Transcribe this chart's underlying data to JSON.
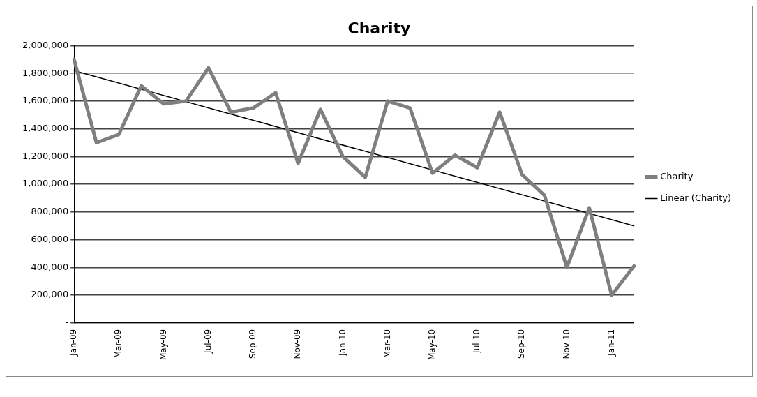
{
  "chart_data": {
    "type": "line",
    "title": "Charity",
    "categories": [
      "Jan-09",
      null,
      "Mar-09",
      null,
      "May-09",
      null,
      "Jul-09",
      null,
      "Sep-09",
      null,
      "Nov-09",
      null,
      "Jan-10",
      null,
      "Mar-10",
      null,
      "May-10",
      null,
      "Jul-10",
      null,
      "Sep-10",
      null,
      "Nov-10",
      null,
      "Jan-11",
      null
    ],
    "series": [
      {
        "name": "Charity",
        "color": "#7f7f7f",
        "values": [
          1900000,
          1300000,
          1360000,
          1710000,
          1580000,
          1600000,
          1840000,
          1520000,
          1550000,
          1660000,
          1150000,
          1540000,
          1200000,
          1050000,
          1600000,
          1550000,
          1080000,
          1210000,
          1120000,
          1520000,
          1070000,
          920000,
          400000,
          830000,
          200000,
          410000
        ]
      },
      {
        "name": "Linear (Charity)",
        "color": "#000000",
        "line_style": "solid",
        "values": [
          1820000,
          null,
          null,
          null,
          null,
          null,
          null,
          null,
          null,
          null,
          null,
          null,
          null,
          null,
          null,
          null,
          null,
          null,
          null,
          null,
          null,
          null,
          null,
          null,
          null,
          700000
        ]
      }
    ],
    "ylim": [
      0,
      2000000
    ],
    "yticks": [
      {
        "value": 0,
        "label": "-"
      },
      {
        "value": 200000,
        "label": "200,000"
      },
      {
        "value": 400000,
        "label": "400,000"
      },
      {
        "value": 600000,
        "label": "600,000"
      },
      {
        "value": 800000,
        "label": "800,000"
      },
      {
        "value": 1000000,
        "label": "1,000,000"
      },
      {
        "value": 1200000,
        "label": "1,200,000"
      },
      {
        "value": 1400000,
        "label": "1,400,000"
      },
      {
        "value": 1600000,
        "label": "1,600,000"
      },
      {
        "value": 1800000,
        "label": "1,800,000"
      },
      {
        "value": 2000000,
        "label": "2,000,000"
      }
    ],
    "grid": "y",
    "legend": "right",
    "marker": "none"
  }
}
